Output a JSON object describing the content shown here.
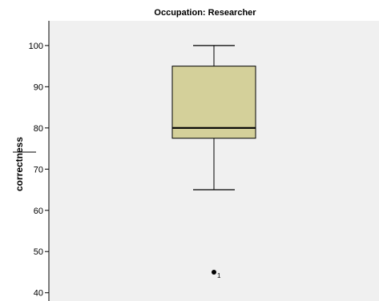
{
  "chart_data": {
    "type": "boxplot",
    "title": "Occupation: Researcher",
    "xlabel": "",
    "ylabel": "correctness",
    "ylim": [
      38,
      106
    ],
    "yticks": [
      40,
      50,
      60,
      70,
      80,
      90,
      100
    ],
    "grid": false,
    "series": [
      {
        "min": 65,
        "q1": 77.5,
        "median": 80,
        "q3": 95,
        "max": 100,
        "outliers": [
          {
            "value": 45,
            "label": "1"
          }
        ]
      }
    ],
    "colors": {
      "plot_background": "#f0f0f0",
      "box_fill": "#d4d09a",
      "box_stroke": "#000000",
      "page_background": "#ffffff"
    }
  }
}
